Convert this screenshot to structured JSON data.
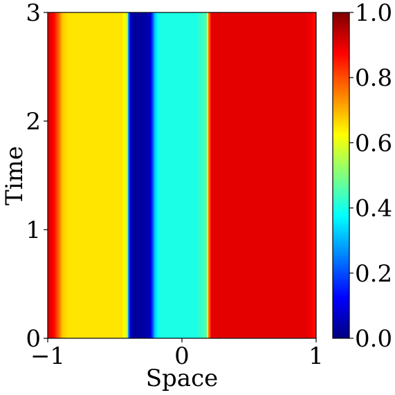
{
  "chart_data": {
    "type": "heatmap",
    "xlabel": "Space",
    "ylabel": "Time",
    "xlim": [
      -1,
      1
    ],
    "ylim": [
      0,
      3
    ],
    "x_ticks": [
      -1,
      0,
      1
    ],
    "x_tick_labels": [
      "−1",
      "0",
      "1"
    ],
    "y_ticks": [
      0,
      1,
      2,
      3
    ],
    "y_tick_labels": [
      "0",
      "1",
      "2",
      "3"
    ],
    "colormap": "jet",
    "colorbar": {
      "range": [
        0.0,
        1.0
      ],
      "ticks": [
        0.0,
        0.2,
        0.4,
        0.6,
        0.8,
        1.0
      ],
      "tick_labels": [
        "0.0",
        "0.2",
        "0.4",
        "0.6",
        "0.8",
        "1.0"
      ]
    },
    "profile_x": [
      -1.0,
      -0.98,
      -0.95,
      -0.92,
      -0.89,
      -0.85,
      -0.8,
      -0.6,
      -0.45,
      -0.41,
      -0.39,
      -0.36,
      -0.3,
      -0.24,
      -0.2,
      -0.17,
      -0.1,
      0.0,
      0.1,
      0.18,
      0.2,
      0.22,
      0.25,
      0.4,
      0.6,
      0.8,
      0.93,
      0.97,
      1.0
    ],
    "profile_value": [
      0.9,
      0.9,
      0.86,
      0.78,
      0.68,
      0.65,
      0.65,
      0.65,
      0.65,
      0.6,
      0.08,
      0.03,
      0.03,
      0.05,
      0.33,
      0.4,
      0.4,
      0.4,
      0.4,
      0.45,
      0.75,
      0.9,
      0.9,
      0.9,
      0.9,
      0.9,
      0.9,
      0.88,
      0.85
    ]
  }
}
